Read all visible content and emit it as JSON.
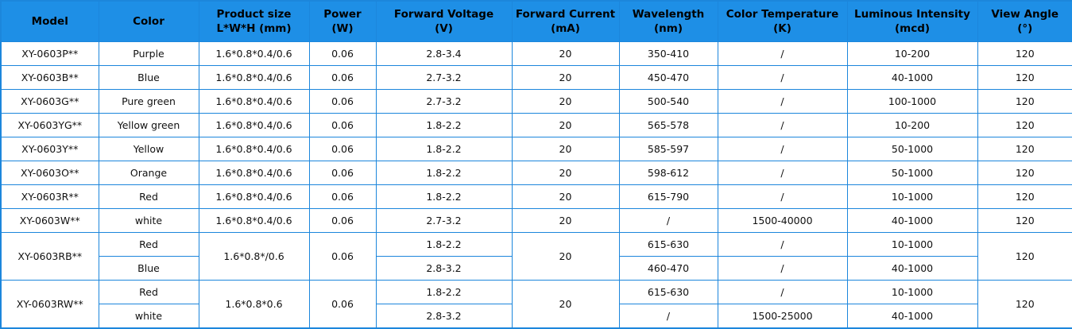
{
  "table": {
    "header": [
      [
        "Model"
      ],
      [
        "Color"
      ],
      [
        "Product size",
        "L*W*H  (mm)"
      ],
      [
        "Power",
        "(W)"
      ],
      [
        "Forward Voltage",
        "(V)"
      ],
      [
        "Forward Current",
        "(mA)"
      ],
      [
        "Wavelength",
        "(nm)"
      ],
      [
        "Color Temperature",
        "(K)"
      ],
      [
        "Luminous Intensity",
        "(mcd)"
      ],
      [
        "View Angle",
        "(°)"
      ]
    ],
    "groups": [
      {
        "model": "XY-0603P**",
        "size": "1.6*0.8*0.4/0.6",
        "power": "0.06",
        "current": "20",
        "angle": "120",
        "variants": [
          {
            "color": "Purple",
            "voltage": "2.8-3.4",
            "wavelength": "350-410",
            "temperature": "/",
            "intensity": "10-200"
          }
        ]
      },
      {
        "model": "XY-0603B**",
        "size": "1.6*0.8*0.4/0.6",
        "power": "0.06",
        "current": "20",
        "angle": "120",
        "variants": [
          {
            "color": "Blue",
            "voltage": "2.7-3.2",
            "wavelength": "450-470",
            "temperature": "/",
            "intensity": "40-1000"
          }
        ]
      },
      {
        "model": "XY-0603G**",
        "size": "1.6*0.8*0.4/0.6",
        "power": "0.06",
        "current": "20",
        "angle": "120",
        "variants": [
          {
            "color": "Pure green",
            "voltage": "2.7-3.2",
            "wavelength": "500-540",
            "temperature": "/",
            "intensity": "100-1000"
          }
        ]
      },
      {
        "model": "XY-0603YG**",
        "size": "1.6*0.8*0.4/0.6",
        "power": "0.06",
        "current": "20",
        "angle": "120",
        "variants": [
          {
            "color": "Yellow green",
            "voltage": "1.8-2.2",
            "wavelength": "565-578",
            "temperature": "/",
            "intensity": "10-200"
          }
        ]
      },
      {
        "model": "XY-0603Y**",
        "size": "1.6*0.8*0.4/0.6",
        "power": "0.06",
        "current": "20",
        "angle": "120",
        "variants": [
          {
            "color": "Yellow",
            "voltage": "1.8-2.2",
            "wavelength": "585-597",
            "temperature": "/",
            "intensity": "50-1000"
          }
        ]
      },
      {
        "model": "XY-0603O**",
        "size": "1.6*0.8*0.4/0.6",
        "power": "0.06",
        "current": "20",
        "angle": "120",
        "variants": [
          {
            "color": "Orange",
            "voltage": "1.8-2.2",
            "wavelength": "598-612",
            "temperature": "/",
            "intensity": "50-1000"
          }
        ]
      },
      {
        "model": "XY-0603R**",
        "size": "1.6*0.8*0.4/0.6",
        "power": "0.06",
        "current": "20",
        "angle": "120",
        "variants": [
          {
            "color": "Red",
            "voltage": "1.8-2.2",
            "wavelength": "615-790",
            "temperature": "/",
            "intensity": "10-1000"
          }
        ]
      },
      {
        "model": "XY-0603W**",
        "size": "1.6*0.8*0.4/0.6",
        "power": "0.06",
        "current": "20",
        "angle": "120",
        "variants": [
          {
            "color": "white",
            "voltage": "2.7-3.2",
            "wavelength": "/",
            "temperature": "1500-40000",
            "intensity": "40-1000"
          }
        ]
      },
      {
        "model": "XY-0603RB**",
        "size": "1.6*0.8*/0.6",
        "power": "0.06",
        "current": "20",
        "angle": "120",
        "variants": [
          {
            "color": "Red",
            "voltage": "1.8-2.2",
            "wavelength": "615-630",
            "temperature": "/",
            "intensity": "10-1000"
          },
          {
            "color": "Blue",
            "voltage": "2.8-3.2",
            "wavelength": "460-470",
            "temperature": "/",
            "intensity": "40-1000"
          }
        ]
      },
      {
        "model": "XY-0603RW**",
        "size": "1.6*0.8*0.6",
        "power": "0.06",
        "current": "20",
        "angle": "120",
        "variants": [
          {
            "color": "Red",
            "voltage": "1.8-2.2",
            "wavelength": "615-630",
            "temperature": "/",
            "intensity": "10-1000"
          },
          {
            "color": "white",
            "voltage": "2.8-3.2",
            "wavelength": "/",
            "temperature": "1500-25000",
            "intensity": "40-1000"
          }
        ]
      }
    ]
  }
}
